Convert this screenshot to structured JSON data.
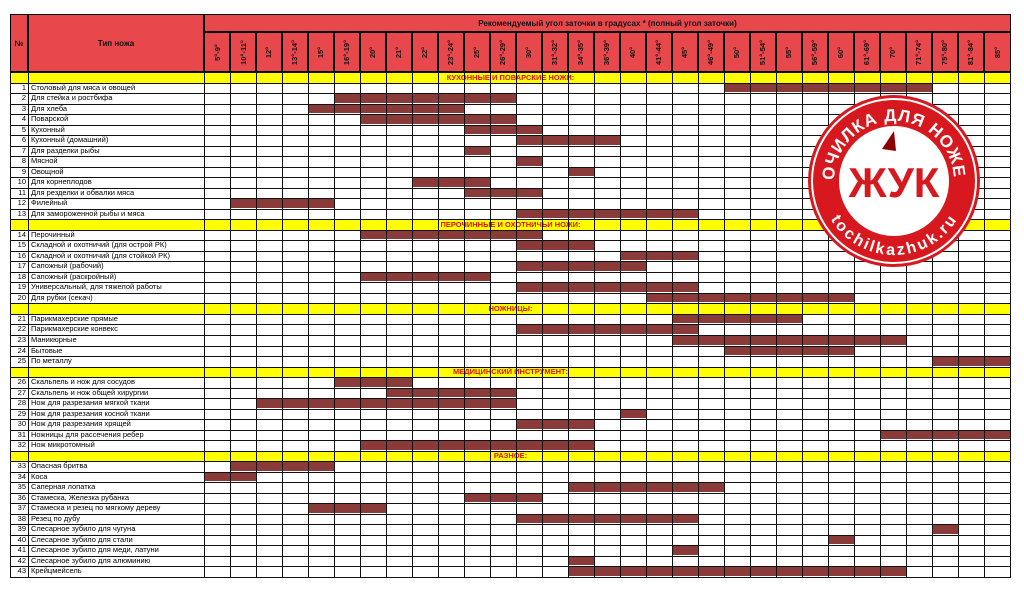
{
  "header": {
    "num_label": "№",
    "name_label": "Тип ножа",
    "group_label": "Рекомендуемый угол заточки в градусах * (полный угол заточки)"
  },
  "angles": [
    "5°-9°",
    "10°-11°",
    "12°",
    "13°-14°",
    "15°",
    "16°-19°",
    "20°",
    "21°",
    "22°",
    "23°-24°",
    "25°",
    "26°-29°",
    "30°",
    "31°-32°",
    "34°-35°",
    "36°-39°",
    "40°",
    "41°-44°",
    "45°",
    "46°-49°",
    "50°",
    "51°-54°",
    "55°",
    "56°-59°",
    "60°",
    "61°-69°",
    "70°",
    "71°-74°",
    "75°-80°",
    "81°-84°",
    "85°"
  ],
  "sections": [
    {
      "title": "КУХОННЫЕ И ПОВАРСКИЕ НОЖИ:",
      "rows": [
        {
          "n": "1",
          "name": "Столовый для мяса и овощей",
          "bars": [
            [
              20,
              27
            ]
          ]
        },
        {
          "n": "2",
          "name": "Для стейка и ростбифа",
          "bars": [
            [
              5,
              11
            ]
          ]
        },
        {
          "n": "3",
          "name": "Для хлеба",
          "bars": [
            [
              4,
              9
            ]
          ]
        },
        {
          "n": "4",
          "name": "Поварской",
          "bars": [
            [
              6,
              11
            ]
          ]
        },
        {
          "n": "5",
          "name": "Кухонный",
          "bars": [
            [
              10,
              12
            ]
          ]
        },
        {
          "n": "6",
          "name": "Кухонный (домашний)",
          "bars": [
            [
              12,
              15
            ]
          ]
        },
        {
          "n": "7",
          "name": "Для разделки рыбы",
          "bars": [
            [
              10,
              10
            ]
          ]
        },
        {
          "n": "8",
          "name": "Мясной",
          "bars": [
            [
              12,
              12
            ]
          ]
        },
        {
          "n": "9",
          "name": "Овощной",
          "bars": [
            [
              14,
              14
            ]
          ]
        },
        {
          "n": "10",
          "name": "Для корнеплодов",
          "bars": [
            [
              8,
              10
            ]
          ]
        },
        {
          "n": "11",
          "name": "Для резделки и обвалки мяса",
          "bars": [
            [
              10,
              12
            ]
          ]
        },
        {
          "n": "12",
          "name": "Филейный",
          "bars": [
            [
              1,
              4
            ]
          ]
        },
        {
          "n": "13",
          "name": "Для замороженной рыбы и мяса",
          "bars": [
            [
              12,
              18
            ]
          ]
        }
      ]
    },
    {
      "title": "ПЕРОЧИННЫЕ И ОХОТНИЧЬИ НОЖИ:",
      "rows": [
        {
          "n": "14",
          "name": "Перочинный",
          "bars": [
            [
              6,
              12
            ]
          ]
        },
        {
          "n": "15",
          "name": "Складной и охотничий (для острой РК)",
          "bars": [
            [
              12,
              14
            ]
          ]
        },
        {
          "n": "16",
          "name": "Складной и охотничий (для стойкой РК)",
          "bars": [
            [
              16,
              18
            ]
          ]
        },
        {
          "n": "17",
          "name": "Сапожный (рабочий)",
          "bars": [
            [
              12,
              16
            ]
          ]
        },
        {
          "n": "18",
          "name": "Сапожный (раскройный)",
          "bars": [
            [
              6,
              10
            ]
          ]
        },
        {
          "n": "19",
          "name": "Универсальный, для тяжелой работы",
          "bars": [
            [
              12,
              18
            ]
          ]
        },
        {
          "n": "20",
          "name": "Для рубки (секач)",
          "bars": [
            [
              17,
              24
            ]
          ]
        }
      ]
    },
    {
      "title": "НОЖНИЦЫ:",
      "rows": [
        {
          "n": "21",
          "name": "Парикмахерские прямые",
          "bars": [
            [
              18,
              22
            ]
          ]
        },
        {
          "n": "22",
          "name": "Парикмахерские конвекс",
          "bars": [
            [
              12,
              18
            ]
          ]
        },
        {
          "n": "23",
          "name": "Маникюрные",
          "bars": [
            [
              18,
              26
            ]
          ]
        },
        {
          "n": "24",
          "name": "Бытовые",
          "bars": [
            [
              20,
              24
            ]
          ]
        },
        {
          "n": "25",
          "name": "По металлу",
          "bars": [
            [
              28,
              30
            ]
          ]
        }
      ]
    },
    {
      "title": "МЕДИЦИНСКИЙ ИНСТРУМЕНТ:",
      "rows": [
        {
          "n": "26",
          "name": "Скальпель и нож для сосудов",
          "bars": [
            [
              5,
              7
            ]
          ]
        },
        {
          "n": "27",
          "name": "Скальпель и нож общей хирургии",
          "bars": [
            [
              7,
              11
            ]
          ]
        },
        {
          "n": "28",
          "name": "Нож для разрезания мягкой ткани",
          "bars": [
            [
              2,
              11
            ]
          ]
        },
        {
          "n": "29",
          "name": "Нож для разрезания косной ткани",
          "bars": [
            [
              16,
              16
            ]
          ]
        },
        {
          "n": "30",
          "name": "Нож для разрезания хрящей",
          "bars": [
            [
              12,
              14
            ]
          ]
        },
        {
          "n": "31",
          "name": "Ножницы для рассечения ребер",
          "bars": [
            [
              26,
              30
            ]
          ]
        },
        {
          "n": "32",
          "name": "Нож микротомный",
          "bars": [
            [
              6,
              14
            ]
          ]
        }
      ]
    },
    {
      "title": "РАЗНОЕ:",
      "rows": [
        {
          "n": "33",
          "name": "Опасная бритва",
          "bars": [
            [
              1,
              4
            ]
          ]
        },
        {
          "n": "34",
          "name": "Коса",
          "bars": [
            [
              0,
              1
            ]
          ]
        },
        {
          "n": "35",
          "name": "Саперная лопатка",
          "bars": [
            [
              14,
              19
            ]
          ]
        },
        {
          "n": "36",
          "name": "Стамеска, Железка рубанка",
          "bars": [
            [
              10,
              12
            ]
          ]
        },
        {
          "n": "37",
          "name": "Стамеска и резец по мягкому дереву",
          "bars": [
            [
              4,
              6
            ]
          ]
        },
        {
          "n": "38",
          "name": "Резец по дубу",
          "bars": [
            [
              12,
              18
            ]
          ]
        },
        {
          "n": "39",
          "name": "Слесарное зубило для чугуна",
          "bars": [
            [
              28,
              28
            ]
          ]
        },
        {
          "n": "40",
          "name": "Слесарное зубило для стали",
          "bars": [
            [
              24,
              24
            ]
          ]
        },
        {
          "n": "41",
          "name": "Слесарное зубило для меди, латуни",
          "bars": [
            [
              18,
              18
            ]
          ]
        },
        {
          "n": "42",
          "name": "Слесарное зубило для алюминию",
          "bars": [
            [
              14,
              14
            ]
          ]
        },
        {
          "n": "43",
          "name": "Крейцмейсель",
          "bars": [
            [
              14,
              26
            ]
          ]
        }
      ]
    }
  ],
  "logo": {
    "top_text": "ТОЧИЛКА ДЛЯ НОЖЕЙ",
    "center_text": "ЖУК",
    "bottom_text": "tochilkazhuk.ru"
  },
  "colors": {
    "header_red": "#e8474c",
    "band_yellow": "#ffff00",
    "band_text": "#e01010",
    "bar": "#8b3a3a",
    "logo_red": "#d7191f"
  }
}
